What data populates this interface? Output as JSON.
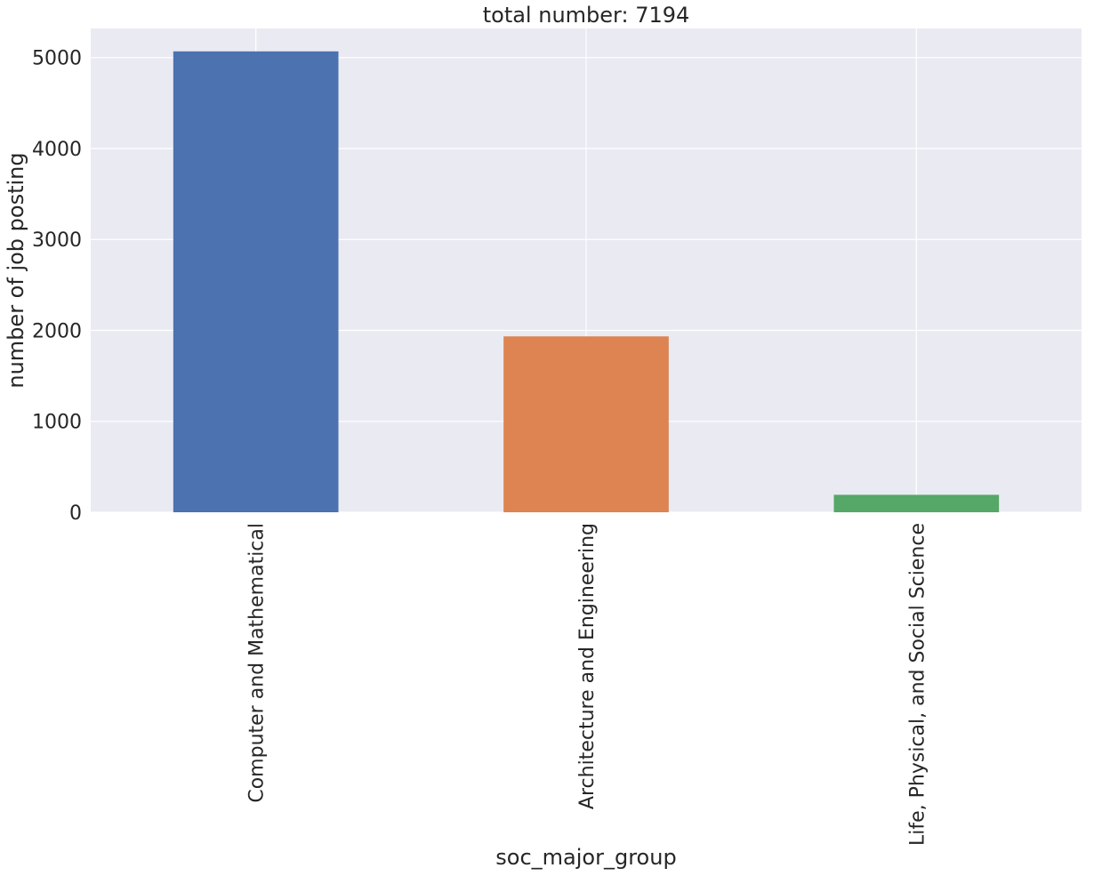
{
  "chart_data": {
    "type": "bar",
    "title": "total number: 7194",
    "xlabel": "soc_major_group",
    "ylabel": "number of job posting",
    "categories": [
      "Computer and Mathematical",
      "Architecture and Engineering",
      "Life, Physical, and Social Science"
    ],
    "values": [
      5068,
      1934,
      192
    ],
    "ylim": [
      0,
      5320
    ],
    "yticks": [
      0,
      1000,
      2000,
      3000,
      4000,
      5000
    ],
    "grid": true,
    "colors": [
      "#4c72b0",
      "#dd8452",
      "#55a868"
    ],
    "background": "#eaeaf2",
    "grid_color": "#ffffff"
  }
}
